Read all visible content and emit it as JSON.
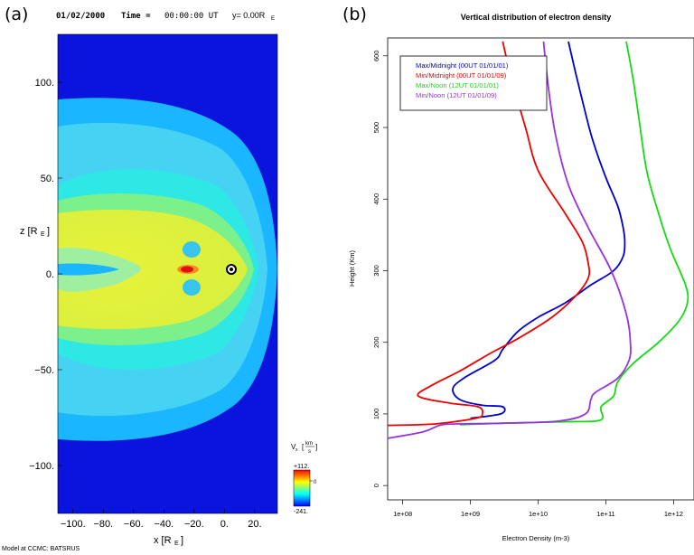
{
  "panel_a": {
    "label": "(a)",
    "header": {
      "date": "01/02/2000",
      "time_label": "Time =",
      "time_value": "00:00:00 UT",
      "slice": "y= 0.00R",
      "slice_sub": "E"
    },
    "footer": "Model at CCMC: BATSRUS",
    "colorbar": {
      "quantity": "V",
      "quantity_sub": "x",
      "unit_num": "km",
      "unit_den": "s",
      "max_label": "+112.",
      "mid_label": "0",
      "min_label": "-241.",
      "colors": [
        "#ff0000",
        "#ff8000",
        "#ffff00",
        "#80ff80",
        "#00ffff",
        "#0080ff",
        "#0000ff"
      ]
    }
  },
  "panel_b": {
    "label": "(b)"
  },
  "chart_data": [
    {
      "type": "heatmap",
      "title": "01/02/2000 Time = 00:00:00 UT y= 0.00R_E",
      "xlabel": "x [R_E]",
      "ylabel": "z [R_E]",
      "xlim": [
        -110,
        35
      ],
      "ylim": [
        -125,
        125
      ],
      "x_ticks": [
        -100,
        -80,
        -60,
        -40,
        -20,
        0,
        20
      ],
      "x_tick_labels": [
        "−100.",
        "−80.",
        "−60.",
        "−40.",
        "−20.",
        "0.",
        "20."
      ],
      "y_ticks": [
        100,
        50,
        0,
        -50,
        -100
      ],
      "y_tick_labels": [
        "100.",
        "50.",
        "0.",
        "−50.",
        "−100."
      ],
      "colorbar_range": [
        -241,
        112
      ],
      "colorbar_label": "V_x [km/s]"
    },
    {
      "type": "line",
      "title": "Vertical distribution of electron density",
      "xlabel": "Electron Density (m-3)",
      "ylabel": "Height (Km)",
      "x_scale": "log",
      "xlim": [
        60000000,
        2000000000000
      ],
      "ylim": [
        -20,
        625
      ],
      "x_ticks": [
        100000000,
        1000000000,
        10000000000,
        100000000000,
        1000000000000
      ],
      "x_tick_labels": [
        "1e+08",
        "1e+09",
        "1e+10",
        "1e+11",
        "1e+12"
      ],
      "y_ticks": [
        0,
        100,
        200,
        300,
        400,
        500,
        600
      ],
      "y_tick_labels": [
        "0",
        "100",
        "200",
        "300",
        "400",
        "500",
        "600"
      ],
      "legend_position": "top-left",
      "series": [
        {
          "name": "Max/Midnight (00UT 01/01/01)",
          "color": "#0000cc",
          "points": [
            [
              1000000000.0,
              94
            ],
            [
              2800000000.0,
              100
            ],
            [
              3000000000.0,
              110
            ],
            [
              1500000000.0,
              112
            ],
            [
              700000000.0,
              120
            ],
            [
              550000000.0,
              135
            ],
            [
              800000000.0,
              150
            ],
            [
              2300000000.0,
              175
            ],
            [
              3000000000.0,
              190
            ],
            [
              5000000000.0,
              215
            ],
            [
              10000000000.0,
              235
            ],
            [
              25000000000.0,
              255
            ],
            [
              60000000000.0,
              280
            ],
            [
              130000000000.0,
              300
            ],
            [
              180000000000.0,
              320
            ],
            [
              190000000000.0,
              340
            ],
            [
              180000000000.0,
              360
            ],
            [
              150000000000.0,
              390
            ],
            [
              100000000000.0,
              430
            ],
            [
              65000000000.0,
              480
            ],
            [
              50000000000.0,
              520
            ],
            [
              35000000000.0,
              580
            ],
            [
              28000000000.0,
              620
            ]
          ]
        },
        {
          "name": "Min/Midnight (00UT 01/01/09)",
          "color": "#ee0000",
          "points": [
            [
              60000000.0,
              84
            ],
            [
              300000000.0,
              86
            ],
            [
              1200000000.0,
              94
            ],
            [
              1500000000.0,
              100
            ],
            [
              1300000000.0,
              110
            ],
            [
              500000000.0,
              115
            ],
            [
              170000000.0,
              125
            ],
            [
              270000000.0,
              140
            ],
            [
              700000000.0,
              160
            ],
            [
              2000000000.0,
              185
            ],
            [
              5000000000.0,
              205
            ],
            [
              16000000000.0,
              235
            ],
            [
              36000000000.0,
              265
            ],
            [
              55000000000.0,
              290
            ],
            [
              55000000000.0,
              310
            ],
            [
              45000000000.0,
              340
            ],
            [
              25000000000.0,
              380
            ],
            [
              10000000000.0,
              440
            ],
            [
              6500000000.0,
              500
            ],
            [
              4000000000.0,
              570
            ],
            [
              3000000000.0,
              620
            ]
          ]
        },
        {
          "name": "Max/Noon (12UT 01/01/01)",
          "color": "#11dd11",
          "points": [
            [
              700000000.0,
              85
            ],
            [
              3000000000.0,
              87
            ],
            [
              25000000000.0,
              89
            ],
            [
              70000000000.0,
              90
            ],
            [
              90000000000.0,
              95
            ],
            [
              85000000000.0,
              110
            ],
            [
              130000000000.0,
              125
            ],
            [
              150000000000.0,
              145
            ],
            [
              250000000000.0,
              170
            ],
            [
              600000000000.0,
              200
            ],
            [
              1200000000000.0,
              230
            ],
            [
              1600000000000.0,
              255
            ],
            [
              1500000000000.0,
              280
            ],
            [
              900000000000.0,
              330
            ],
            [
              600000000000.0,
              380
            ],
            [
              400000000000.0,
              440
            ],
            [
              300000000000.0,
              520
            ],
            [
              250000000000.0,
              570
            ],
            [
              200000000000.0,
              620
            ]
          ]
        },
        {
          "name": "Min/Noon (12UT 01/01/09)",
          "color": "#9933dd",
          "points": [
            [
              60000000.0,
              66
            ],
            [
              200000000.0,
              75
            ],
            [
              350000000.0,
              84
            ],
            [
              600000000.0,
              86
            ],
            [
              3000000000.0,
              87
            ],
            [
              20000000000.0,
              90
            ],
            [
              50000000000.0,
              100
            ],
            [
              60000000000.0,
              120
            ],
            [
              70000000000.0,
              130
            ],
            [
              150000000000.0,
              150
            ],
            [
              220000000000.0,
              175
            ],
            [
              230000000000.0,
              200
            ],
            [
              200000000000.0,
              240
            ],
            [
              120000000000.0,
              300
            ],
            [
              55000000000.0,
              360
            ],
            [
              28000000000.0,
              420
            ],
            [
              18000000000.0,
              490
            ],
            [
              14000000000.0,
              560
            ],
            [
              12000000000.0,
              620
            ]
          ]
        }
      ]
    }
  ]
}
